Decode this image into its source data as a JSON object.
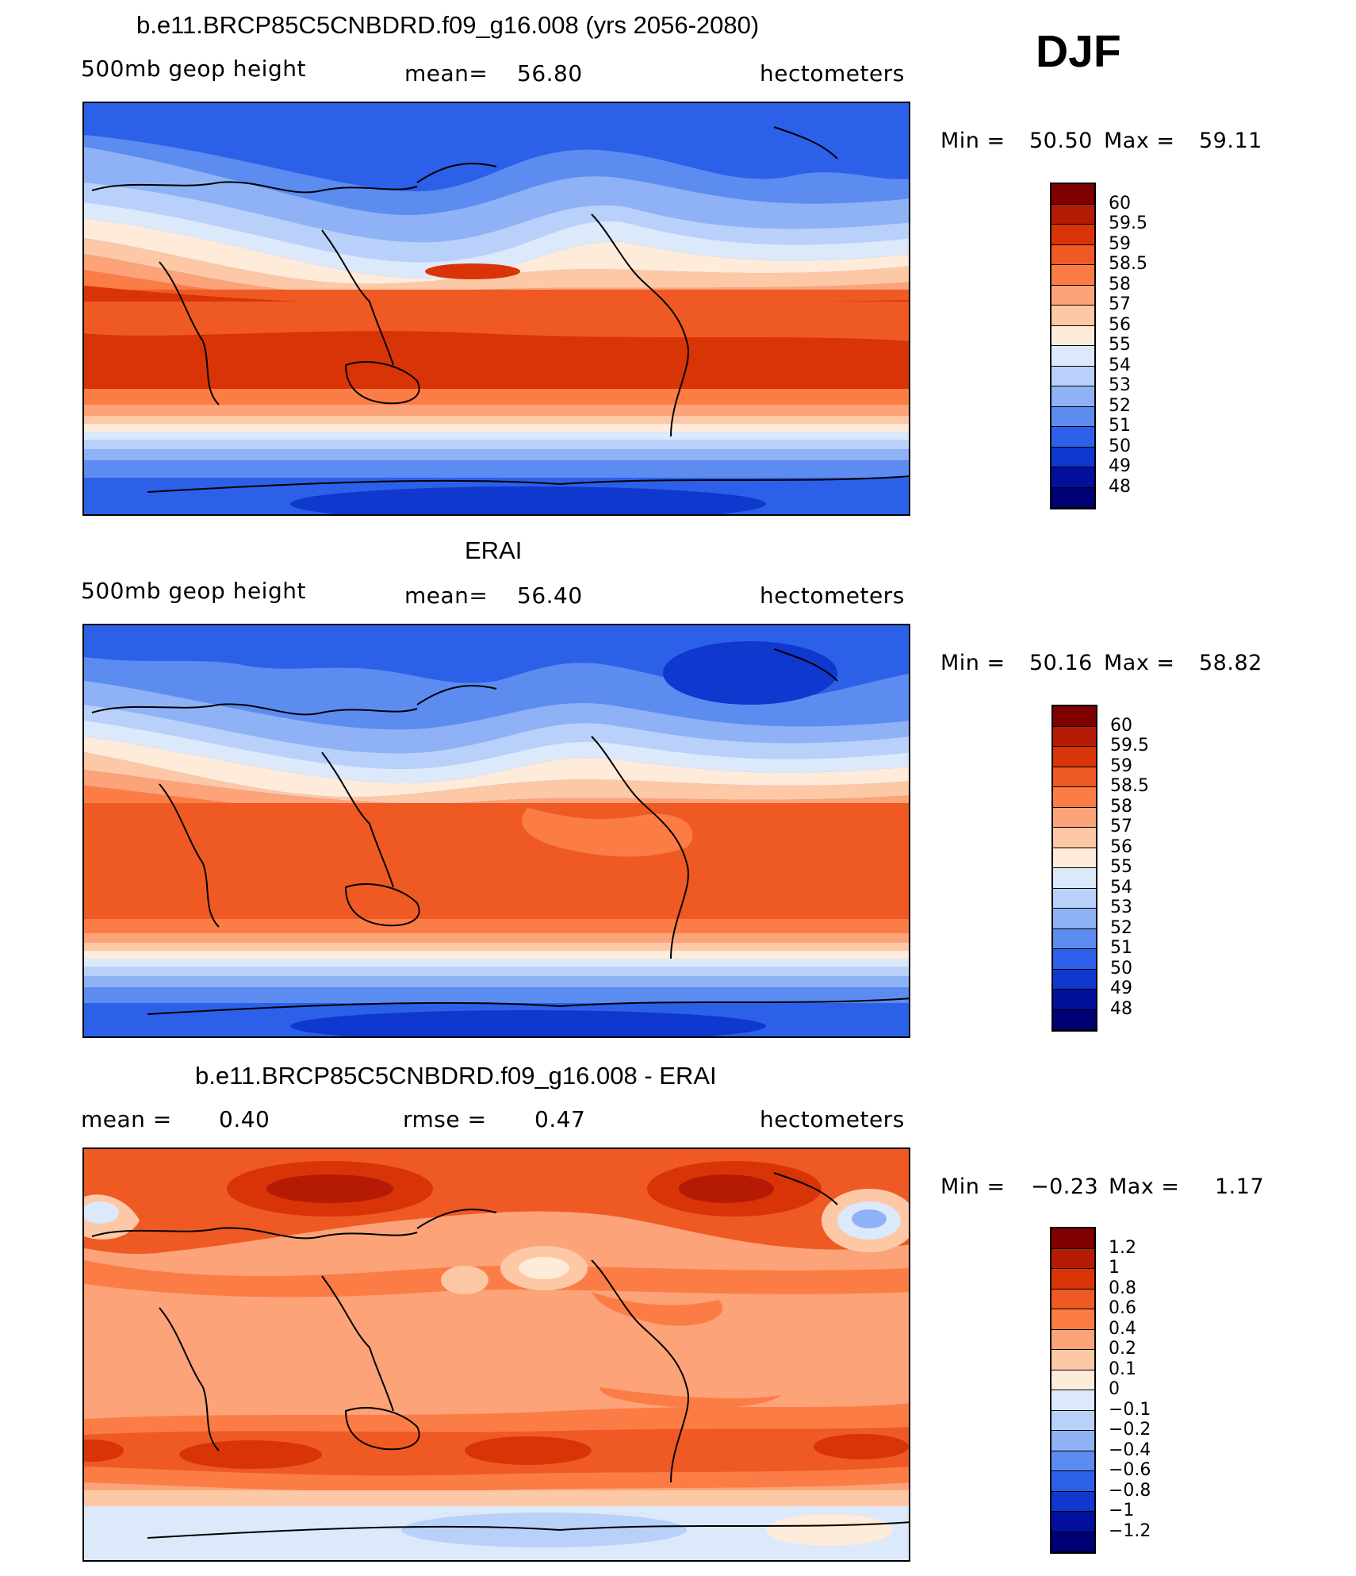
{
  "season": "DJF",
  "panels": [
    {
      "title": "b.e11.BRCP85C5CNBDRD.f09_g16.008 (yrs 2056-2080)",
      "left_label": "500mb  geop  height",
      "mean_label": "mean=",
      "mean_value": "56.80",
      "units": "hectometers",
      "min_label": "Min  =",
      "min_value": "50.50",
      "max_label": "Max  =",
      "max_value": "59.11",
      "colorbar_labels": [
        "60",
        "59.5",
        "59",
        "58.5",
        "58",
        "57",
        "56",
        "55",
        "54",
        "53",
        "52",
        "51",
        "50",
        "49",
        "48"
      ]
    },
    {
      "title": "ERAI",
      "left_label": "500mb  geop  height",
      "mean_label": "mean=",
      "mean_value": "56.40",
      "units": "hectometers",
      "min_label": "Min  =",
      "min_value": "50.16",
      "max_label": "Max  =",
      "max_value": "58.82",
      "colorbar_labels": [
        "60",
        "59.5",
        "59",
        "58.5",
        "58",
        "57",
        "56",
        "55",
        "54",
        "53",
        "52",
        "51",
        "50",
        "49",
        "48"
      ]
    },
    {
      "title": "b.e11.BRCP85C5CNBDRD.f09_g16.008 - ERAI",
      "left_label": "mean  =",
      "left_value": "0.40",
      "mean_label": "rmse  =",
      "mean_value": "0.47",
      "units": "hectometers",
      "min_label": "Min  =",
      "min_value": "−0.23",
      "max_label": "Max  =",
      "max_value": "1.17",
      "colorbar_labels": [
        "1.2",
        "1",
        "0.8",
        "0.6",
        "0.4",
        "0.2",
        "0.1",
        "0",
        "−0.1",
        "−0.2",
        "−0.4",
        "−0.6",
        "−0.8",
        "−1",
        "−1.2"
      ]
    }
  ],
  "colors": {
    "scale": [
      "#7f0000",
      "#b51b04",
      "#d83408",
      "#ef5a24",
      "#fb7d45",
      "#fca37a",
      "#fdc8a6",
      "#feebd9",
      "#dbe9fb",
      "#b9d1fa",
      "#8fb2f6",
      "#5c8cf0",
      "#2d60e8",
      "#0f38cf",
      "#02109b",
      "#000075"
    ]
  }
}
